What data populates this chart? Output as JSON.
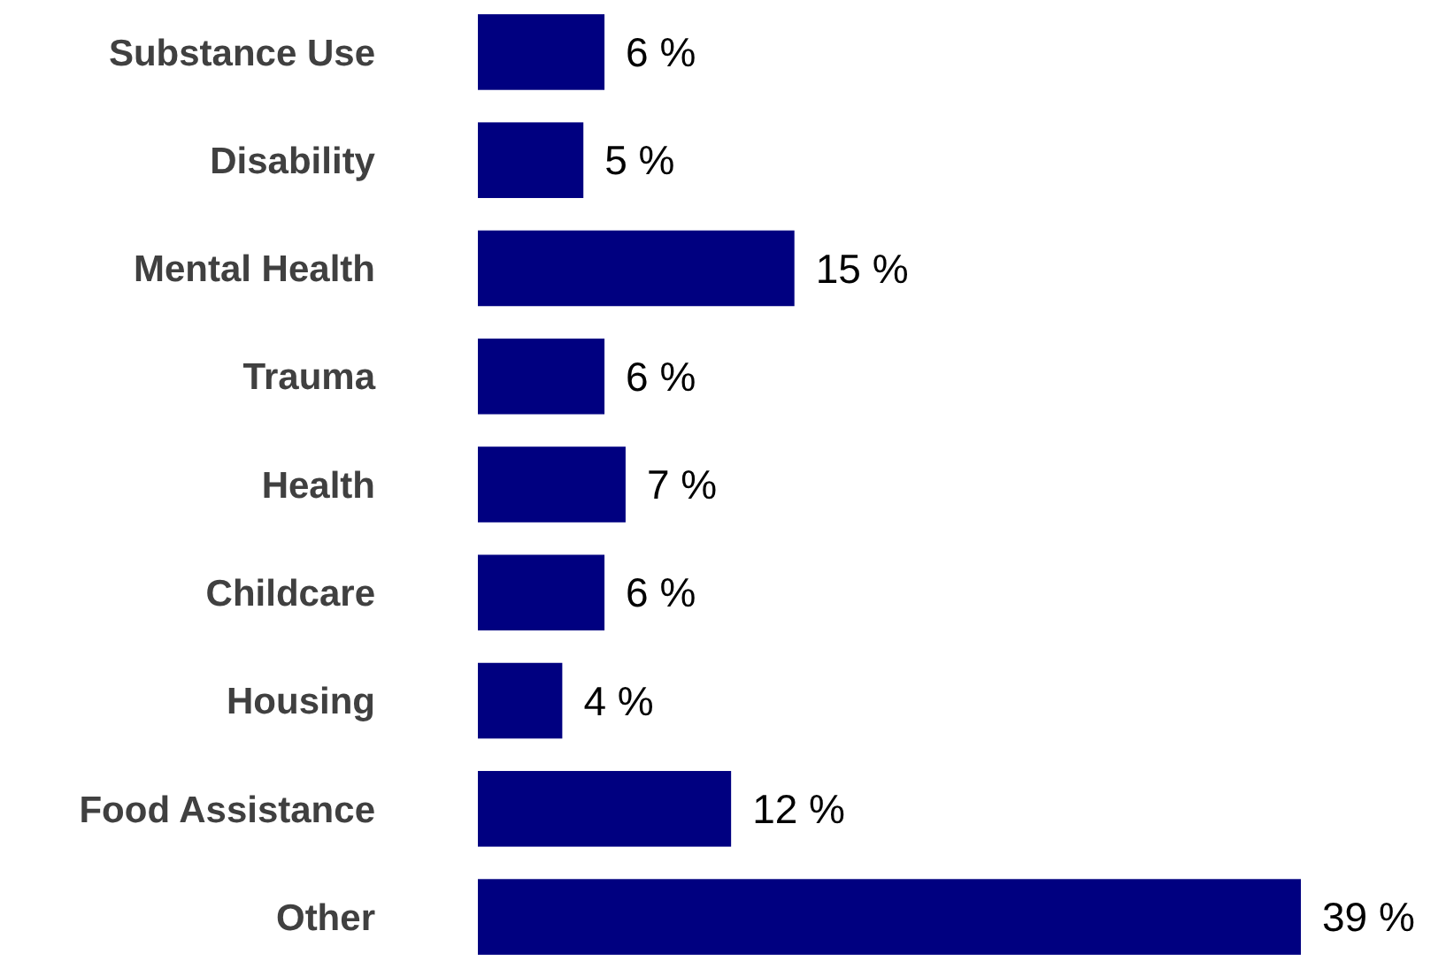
{
  "chart_data": {
    "type": "bar",
    "orientation": "horizontal",
    "categories": [
      "Substance Use",
      "Disability",
      "Mental Health",
      "Trauma",
      "Health",
      "Childcare",
      "Housing",
      "Food Assistance",
      "Other"
    ],
    "values": [
      6,
      5,
      15,
      6,
      7,
      6,
      4,
      12,
      39
    ],
    "value_labels": [
      "6 %",
      "5 %",
      "15 %",
      "6 %",
      "7 %",
      "6 %",
      "4 %",
      "12 %",
      "39 %"
    ],
    "color": "#000080"
  }
}
